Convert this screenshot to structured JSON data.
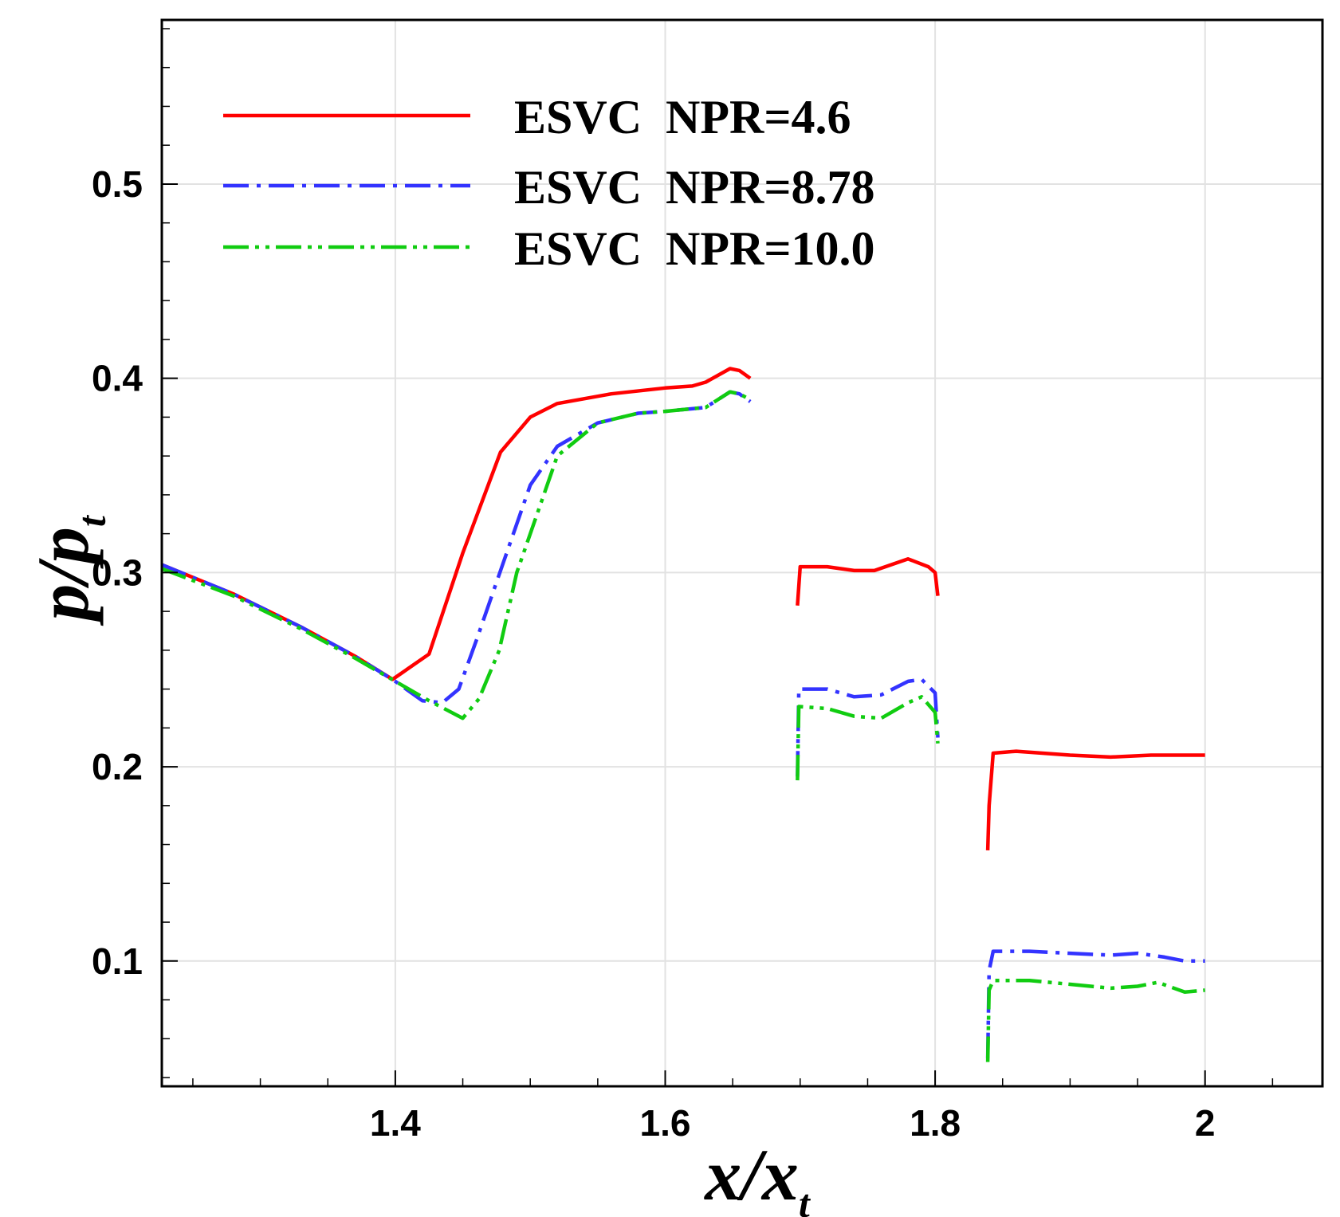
{
  "chart_data": {
    "type": "line",
    "title": "",
    "xlabel": {
      "main": "x/x",
      "sub": "t"
    },
    "ylabel": {
      "main": "p/p",
      "sub": "t"
    },
    "xlim": [
      1.227,
      2.087
    ],
    "ylim": [
      0.0355,
      0.5845
    ],
    "xticks": [
      1.4,
      1.6,
      1.8,
      2.0
    ],
    "xtick_labels": [
      "1.4",
      "1.6",
      "1.8",
      "2"
    ],
    "yticks": [
      0.1,
      0.2,
      0.3,
      0.4,
      0.5
    ],
    "ytick_labels": [
      "0.1",
      "0.2",
      "0.3",
      "0.4",
      "0.5"
    ],
    "grid": true,
    "legend_position": "top-left",
    "series": [
      {
        "name": "ESVC  NPR=4.6",
        "color": "#ff0000",
        "dash": "solid",
        "segments": [
          [
            [
              1.227,
              0.304
            ],
            [
              1.28,
              0.289
            ],
            [
              1.33,
              0.272
            ],
            [
              1.37,
              0.257
            ],
            [
              1.398,
              0.245
            ],
            [
              1.425,
              0.258
            ],
            [
              1.45,
              0.31
            ],
            [
              1.478,
              0.362
            ],
            [
              1.5,
              0.38
            ],
            [
              1.52,
              0.387
            ],
            [
              1.56,
              0.392
            ],
            [
              1.6,
              0.395
            ],
            [
              1.62,
              0.396
            ],
            [
              1.63,
              0.398
            ],
            [
              1.648,
              0.405
            ],
            [
              1.655,
              0.404
            ],
            [
              1.663,
              0.4
            ]
          ],
          [
            [
              1.698,
              0.283
            ],
            [
              1.7,
              0.303
            ],
            [
              1.72,
              0.303
            ],
            [
              1.74,
              0.301
            ],
            [
              1.755,
              0.301
            ],
            [
              1.78,
              0.307
            ],
            [
              1.795,
              0.303
            ],
            [
              1.8,
              0.3
            ],
            [
              1.802,
              0.288
            ]
          ],
          [
            [
              1.839,
              0.157
            ],
            [
              1.84,
              0.18
            ],
            [
              1.843,
              0.207
            ],
            [
              1.86,
              0.208
            ],
            [
              1.9,
              0.206
            ],
            [
              1.93,
              0.205
            ],
            [
              1.96,
              0.206
            ],
            [
              2.0,
              0.206
            ]
          ]
        ]
      },
      {
        "name": "ESVC  NPR=8.78",
        "color": "#3333ff",
        "dash": "dashdot",
        "segments": [
          [
            [
              1.227,
              0.304
            ],
            [
              1.28,
              0.289
            ],
            [
              1.33,
              0.272
            ],
            [
              1.37,
              0.257
            ],
            [
              1.4,
              0.244
            ],
            [
              1.42,
              0.234
            ],
            [
              1.435,
              0.233
            ],
            [
              1.447,
              0.24
            ],
            [
              1.46,
              0.265
            ],
            [
              1.48,
              0.305
            ],
            [
              1.5,
              0.345
            ],
            [
              1.52,
              0.365
            ],
            [
              1.55,
              0.377
            ],
            [
              1.58,
              0.382
            ],
            [
              1.6,
              0.383
            ],
            [
              1.63,
              0.385
            ],
            [
              1.648,
              0.393
            ],
            [
              1.655,
              0.392
            ],
            [
              1.663,
              0.388
            ]
          ],
          [
            [
              1.698,
              0.195
            ],
            [
              1.699,
              0.24
            ],
            [
              1.72,
              0.24
            ],
            [
              1.74,
              0.236
            ],
            [
              1.76,
              0.237
            ],
            [
              1.78,
              0.244
            ],
            [
              1.79,
              0.245
            ],
            [
              1.8,
              0.238
            ],
            [
              1.802,
              0.215
            ]
          ],
          [
            [
              1.839,
              0.05
            ],
            [
              1.84,
              0.095
            ],
            [
              1.843,
              0.105
            ],
            [
              1.87,
              0.105
            ],
            [
              1.9,
              0.104
            ],
            [
              1.93,
              0.103
            ],
            [
              1.95,
              0.104
            ],
            [
              1.97,
              0.102
            ],
            [
              1.985,
              0.1
            ],
            [
              2.0,
              0.1
            ]
          ]
        ]
      },
      {
        "name": "ESVC  NPR=10.0",
        "color": "#11cc11",
        "dash": "dashdotdot",
        "segments": [
          [
            [
              1.227,
              0.302
            ],
            [
              1.28,
              0.288
            ],
            [
              1.33,
              0.271
            ],
            [
              1.37,
              0.256
            ],
            [
              1.4,
              0.244
            ],
            [
              1.425,
              0.234
            ],
            [
              1.45,
              0.225
            ],
            [
              1.462,
              0.235
            ],
            [
              1.477,
              0.26
            ],
            [
              1.49,
              0.3
            ],
            [
              1.505,
              0.33
            ],
            [
              1.52,
              0.36
            ],
            [
              1.55,
              0.377
            ],
            [
              1.58,
              0.382
            ],
            [
              1.6,
              0.383
            ],
            [
              1.63,
              0.385
            ],
            [
              1.648,
              0.393
            ],
            [
              1.655,
              0.392
            ],
            [
              1.663,
              0.389
            ]
          ],
          [
            [
              1.698,
              0.193
            ],
            [
              1.699,
              0.231
            ],
            [
              1.72,
              0.23
            ],
            [
              1.74,
              0.226
            ],
            [
              1.76,
              0.225
            ],
            [
              1.78,
              0.233
            ],
            [
              1.79,
              0.236
            ],
            [
              1.8,
              0.228
            ],
            [
              1.802,
              0.212
            ]
          ],
          [
            [
              1.839,
              0.048
            ],
            [
              1.84,
              0.085
            ],
            [
              1.843,
              0.09
            ],
            [
              1.87,
              0.09
            ],
            [
              1.9,
              0.088
            ],
            [
              1.93,
              0.086
            ],
            [
              1.95,
              0.087
            ],
            [
              1.965,
              0.089
            ],
            [
              1.985,
              0.084
            ],
            [
              2.0,
              0.085
            ]
          ]
        ]
      }
    ]
  }
}
